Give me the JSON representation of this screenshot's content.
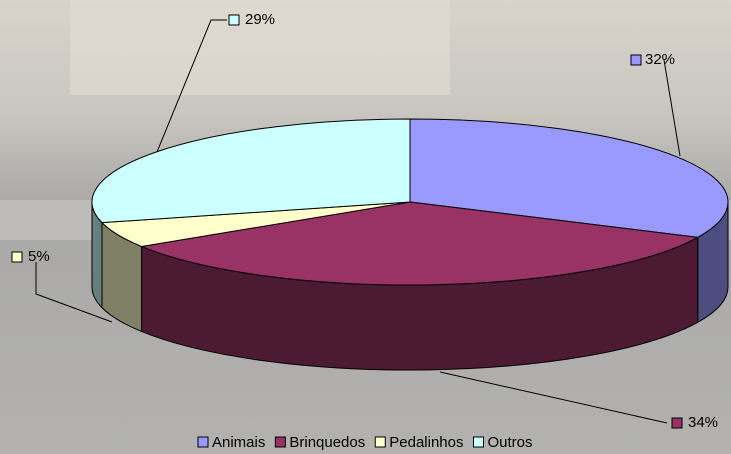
{
  "chart_data": {
    "type": "pie3d",
    "categories": [
      "Animais",
      "Brinquedos",
      "Pedalinhos",
      "Outros"
    ],
    "values": [
      32,
      34,
      5,
      29
    ],
    "value_labels": [
      "32%",
      "34%",
      "5%",
      "29%"
    ],
    "colors": [
      "#9999ff",
      "#993366",
      "#ffffcc",
      "#ccffff"
    ],
    "legend": "bottom"
  }
}
